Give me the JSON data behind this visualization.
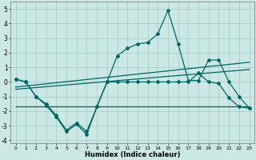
{
  "xlabel": "Humidex (Indice chaleur)",
  "xlim": [
    -0.5,
    23.5
  ],
  "ylim": [
    -4.2,
    5.5
  ],
  "bg_color": "#cce8e4",
  "grid_color": "#aacfcc",
  "line_color": "#006666",
  "x_ticks": [
    0,
    1,
    2,
    3,
    4,
    5,
    6,
    7,
    8,
    9,
    10,
    11,
    12,
    13,
    14,
    15,
    16,
    17,
    18,
    19,
    20,
    21,
    22,
    23
  ],
  "y_ticks": [
    -4,
    -3,
    -2,
    -1,
    0,
    1,
    2,
    3,
    4,
    5
  ],
  "curve_lower_x": [
    0,
    1,
    2,
    3,
    4,
    5,
    6,
    7,
    8,
    9,
    10,
    11,
    12,
    13,
    14,
    15,
    16,
    17,
    18,
    19,
    20,
    21,
    22,
    23
  ],
  "curve_lower_y": [
    0.2,
    0.0,
    -1.0,
    -1.6,
    -2.4,
    -3.4,
    -2.9,
    -3.6,
    -1.7,
    0.0,
    0.0,
    0.0,
    0.0,
    0.0,
    0.0,
    0.0,
    0.0,
    0.0,
    0.6,
    0.0,
    -0.1,
    -1.1,
    -1.7,
    -1.8
  ],
  "curve_upper_x": [
    0,
    1,
    2,
    3,
    4,
    5,
    6,
    7,
    8,
    9,
    10,
    11,
    12,
    13,
    14,
    15,
    16,
    17,
    18,
    19,
    20,
    21,
    22,
    23
  ],
  "curve_upper_y": [
    0.2,
    0.0,
    -1.0,
    -1.5,
    -2.3,
    -3.3,
    -2.8,
    -3.4,
    -1.7,
    0.0,
    1.8,
    2.3,
    2.6,
    2.7,
    3.3,
    4.9,
    2.6,
    0.1,
    0.1,
    1.5,
    1.5,
    0.0,
    -1.0,
    -1.8
  ],
  "flat_line_x": [
    0,
    23
  ],
  "flat_line_y": [
    -1.65,
    -1.65
  ],
  "trend1_x": [
    0,
    23
  ],
  "trend1_y": [
    -0.35,
    1.35
  ],
  "trend2_x": [
    0,
    23
  ],
  "trend2_y": [
    -0.5,
    0.85
  ]
}
